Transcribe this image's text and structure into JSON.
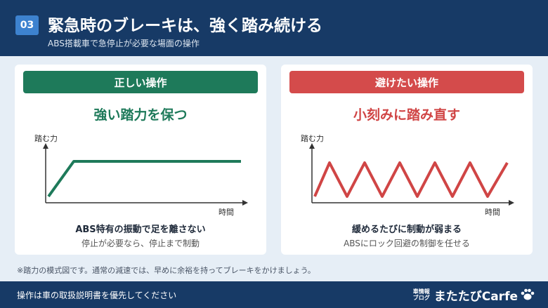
{
  "header": {
    "number": "03",
    "title": "緊急時のブレーキは、強く踏み続ける",
    "subtitle": "ABS搭載車で急停止が必要な場面の操作"
  },
  "cards": [
    {
      "heading": "正しい操作",
      "main": "強い踏力を保つ",
      "ylabel": "踏む力",
      "xlabel": "時間",
      "caption": "ABS特有の振動で足を離さない",
      "caption_sub": "停止が必要なら、停止まで制動",
      "color": "#1e7a5a"
    },
    {
      "heading": "避けたい操作",
      "main": "小刻みに踏み直す",
      "ylabel": "踏む力",
      "xlabel": "時間",
      "caption": "緩めるたびに制動が弱まる",
      "caption_sub": "ABSにロック回避の制御を任せる",
      "color": "#d04545"
    }
  ],
  "footnote": "※踏力の模式図です。通常の減速では、早めに余裕を持ってブレーキをかけましょう。",
  "footer": {
    "text": "操作は車の取扱説明書を優先してください",
    "logo_small_1": "車情報",
    "logo_small_2": "ブログ",
    "logo_main": "またたびCarfe"
  },
  "colors": {
    "navy": "#173a66",
    "green": "#1e7a5a",
    "red": "#d44b4b",
    "badge": "#3d82cf"
  }
}
